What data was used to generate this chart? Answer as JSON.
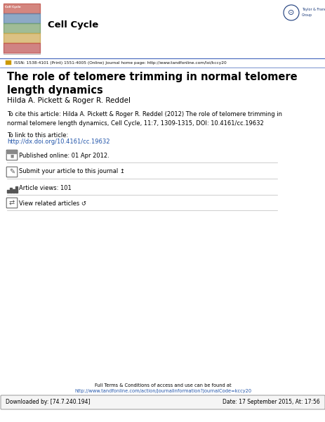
{
  "title": "The role of telomere trimming in normal telomere\nlength dynamics",
  "authors": "Hilda A. Pickett & Roger R. Reddel",
  "journal_name": "Cell Cycle",
  "issn_line": "ISSN: 1538-4101 (Print) 1551-4005 (Online) Journal home page: http://www.tandfonline.com/loi/kccy20",
  "cite_label": "To cite this article:",
  "cite_text": "Hilda A. Pickett & Roger R. Reddel (2012) The role of telomere trimming in\nnormal telomere length dynamics, Cell Cycle, 11:7, 1309-1315, DOI: 10.4161/cc.19632",
  "cite_doi_label": "To link to this article:",
  "cite_doi_url": "http://dx.doi.org/10.4161/cc.19632",
  "published_text": "Published online: 01 Apr 2012.",
  "submit_text": "Submit your article to this journal ↥",
  "views_text": "Article views: 101",
  "related_text": "View related articles ↺",
  "footer_line1": "Full Terms & Conditions of access and use can be found at",
  "footer_line2": "http://www.tandfonline.com/action/journalInformation?journalCode=kccy20",
  "download_left": "Downloaded by: [74.7.240.194]",
  "download_right": "Date: 17 September 2015, At: 17:56",
  "bg_color": "#ffffff",
  "link_color": "#2255aa",
  "header_border_color": "#4466bb",
  "title_fontsize": 10.5,
  "author_fontsize": 7.5,
  "body_fontsize": 6.0,
  "small_fontsize": 5.0,
  "journal_fontsize": 9.5,
  "icon_fontsize": 6.5
}
